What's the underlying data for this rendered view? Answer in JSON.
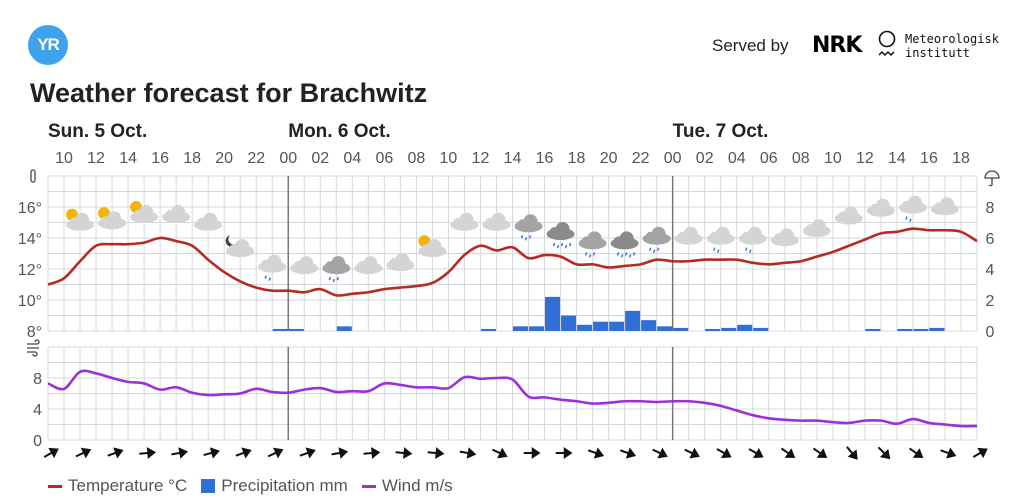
{
  "header": {
    "logo_text": "YR",
    "served_by": "Served by",
    "nrk_logo_text": "NRK",
    "met_logo_line1": "Meteorologisk",
    "met_logo_line2": "institutt"
  },
  "title": "Weather forecast for Brachwitz",
  "colors": {
    "temperature": "#b52a22",
    "precipitation": "#2f6fd6",
    "wind": "#9b30d9",
    "grid": "#d4d8de",
    "day_line": "#777777",
    "logo": "#3ea3ea"
  },
  "chart_data": {
    "type": "line",
    "start_hour": 9,
    "days": [
      {
        "label": "Sun. 5 Oct.",
        "hour_index": 0
      },
      {
        "label": "Mon. 6 Oct.",
        "hour_index": 15
      },
      {
        "label": "Tue. 7 Oct.",
        "hour_index": 39
      }
    ],
    "hour_labels": [
      "10",
      "12",
      "14",
      "16",
      "18",
      "20",
      "22",
      "00",
      "02",
      "04",
      "06",
      "08",
      "10",
      "12",
      "14",
      "16",
      "18",
      "20",
      "22",
      "00",
      "02",
      "04",
      "06",
      "08",
      "10",
      "12",
      "14",
      "16",
      "18"
    ],
    "temp_axis": {
      "unit_icon": "thermometer-icon",
      "ticks": [
        "8°",
        "10°",
        "12°",
        "14°",
        "16°"
      ],
      "tick_values": [
        8,
        10,
        12,
        14,
        16
      ],
      "ylim": [
        8,
        18
      ]
    },
    "precip_axis": {
      "unit_icon": "umbrella-icon",
      "ticks": [
        "0",
        "2",
        "4",
        "6",
        "8"
      ],
      "tick_values": [
        0,
        2,
        4,
        6,
        8
      ],
      "ylim": [
        0,
        10
      ]
    },
    "wind_axis": {
      "unit_icon": "wind-icon",
      "ticks": [
        "0",
        "4",
        "8"
      ],
      "tick_values": [
        0,
        4,
        8
      ],
      "ylim": [
        0,
        12
      ]
    },
    "series": [
      {
        "name": "Temperature °C",
        "unit": "°C",
        "values": [
          11.0,
          11.4,
          12.5,
          13.5,
          13.6,
          13.6,
          13.7,
          14.0,
          13.8,
          13.5,
          12.6,
          11.8,
          11.2,
          10.8,
          10.6,
          10.6,
          10.5,
          10.7,
          10.3,
          10.4,
          10.5,
          10.7,
          10.8,
          10.9,
          11.1,
          11.8,
          12.9,
          13.5,
          13.2,
          13.4,
          12.7,
          12.9,
          12.8,
          12.3,
          12.3,
          12.1,
          12.2,
          12.3,
          12.6,
          12.5,
          12.5,
          12.6,
          12.6,
          12.6,
          12.4,
          12.3,
          12.4,
          12.5,
          12.8,
          13.1,
          13.5,
          13.9,
          14.3,
          14.4,
          14.6,
          14.5,
          14.5,
          14.4,
          13.8
        ]
      },
      {
        "name": "Precipitation mm",
        "unit": "mm",
        "values": [
          0,
          0,
          0,
          0,
          0,
          0,
          0,
          0,
          0,
          0,
          0,
          0,
          0,
          0,
          0.1,
          0.1,
          0,
          0,
          0.3,
          0,
          0,
          0,
          0,
          0,
          0,
          0,
          0,
          0.1,
          0,
          0.3,
          0.3,
          2.2,
          1.0,
          0.4,
          0.6,
          0.6,
          1.3,
          0.7,
          0.3,
          0.2,
          0,
          0.05,
          0.2,
          0.4,
          0.2,
          0,
          0,
          0,
          0,
          0,
          0,
          0.05,
          0,
          0.05,
          0.05,
          0.2,
          0,
          0,
          0
        ]
      },
      {
        "name": "Wind m/s",
        "unit": "m/s",
        "values": [
          7.3,
          6.6,
          8.8,
          8.6,
          8.0,
          7.5,
          7.3,
          6.5,
          6.8,
          6.1,
          5.8,
          5.9,
          6.0,
          6.6,
          6.2,
          6.1,
          6.5,
          6.7,
          6.2,
          6.3,
          6.3,
          7.3,
          7.1,
          6.8,
          6.8,
          6.7,
          8.1,
          7.9,
          8.0,
          7.8,
          5.6,
          5.5,
          5.2,
          5.0,
          4.7,
          4.8,
          5.0,
          5.0,
          4.9,
          5.0,
          5.0,
          4.8,
          4.4,
          3.8,
          3.2,
          2.8,
          2.6,
          2.5,
          2.5,
          2.3,
          2.2,
          2.5,
          2.5,
          2.1,
          2.7,
          2.2,
          2.0,
          1.8,
          1.8
        ]
      }
    ],
    "wind_arrow_rotation_deg": [
      -30,
      -25,
      -20,
      -5,
      -10,
      -15,
      -20,
      -25,
      -20,
      -10,
      -5,
      5,
      5,
      10,
      25,
      0,
      0,
      20,
      20,
      25,
      25,
      30,
      30,
      35,
      35,
      50,
      45,
      35,
      20,
      -30
    ],
    "weather_symbols": [
      "partly-sunny",
      "partly-sunny",
      "partly-sunny",
      "cloudy",
      "cloudy",
      "partly-cloudy-night",
      "light-rain",
      "cloudy",
      "rain",
      "cloudy",
      "cloudy",
      "partly-sunny",
      "cloudy",
      "cloudy",
      "rain",
      "heavy-rain",
      "rain",
      "heavy-rain",
      "rain",
      "cloudy",
      "light-rain",
      "light-rain",
      "cloudy",
      "cloudy",
      "cloudy",
      "cloudy",
      "light-rain",
      "cloudy"
    ]
  },
  "legend": [
    {
      "label": "Temperature °C",
      "kind": "line",
      "color": "#b52a22"
    },
    {
      "label": "Precipitation mm",
      "kind": "box",
      "color": "#2f6fd6"
    },
    {
      "label": "Wind m/s",
      "kind": "line",
      "color": "#9b30d9"
    }
  ]
}
